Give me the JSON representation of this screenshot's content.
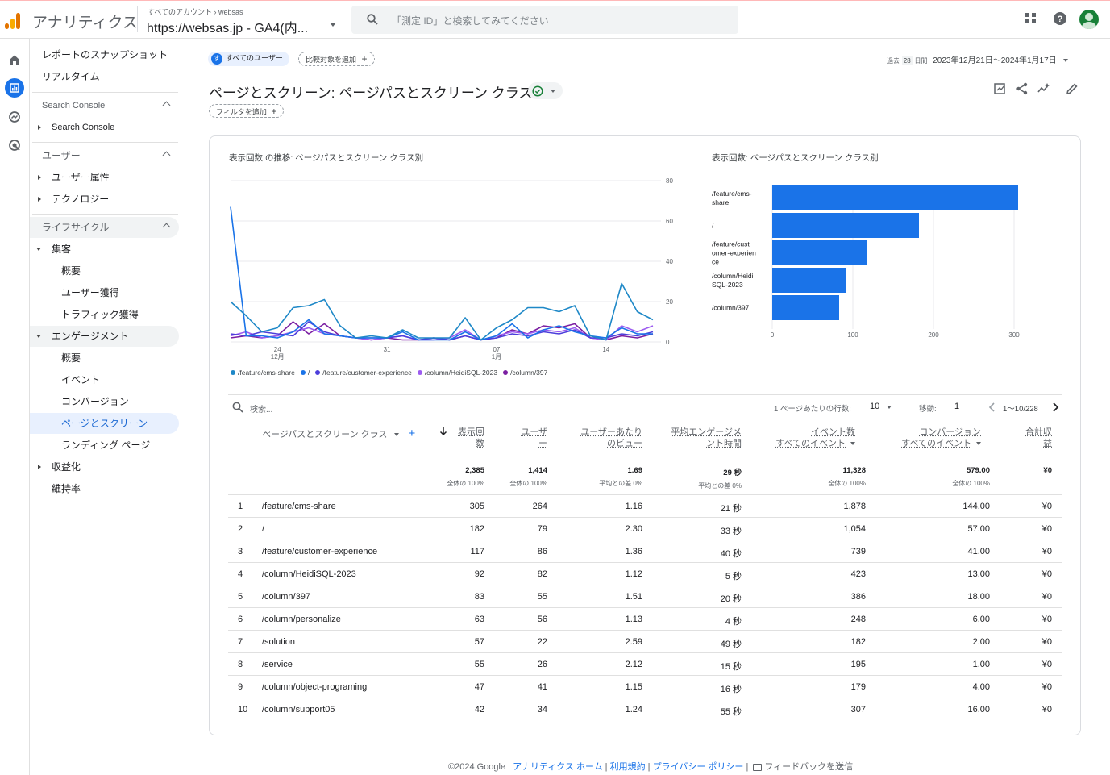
{
  "app": {
    "title": "アナリティクス",
    "account_crumb": [
      "すべてのアカウント",
      "websas"
    ],
    "property_name": "https://websas.jp - GA4(内...",
    "search_placeholder": "「測定 ID」と検索してみてください"
  },
  "sidebar": {
    "top_items": [
      {
        "label": "レポートのスナップショット"
      },
      {
        "label": "リアルタイム"
      }
    ],
    "sections": [
      {
        "title": "Search Console",
        "items": [
          {
            "label": "Search Console"
          }
        ]
      },
      {
        "title": "ユーザー",
        "items": [
          {
            "label": "ユーザー属性"
          },
          {
            "label": "テクノロジー"
          }
        ]
      },
      {
        "title": "ライフサイクル",
        "items": [
          {
            "label": "集客"
          },
          {
            "label": "概要"
          },
          {
            "label": "ユーザー獲得"
          },
          {
            "label": "トラフィック獲得"
          },
          {
            "label": "エンゲージメント"
          },
          {
            "label": "概要"
          },
          {
            "label": "イベント"
          },
          {
            "label": "コンバージョン"
          },
          {
            "label": "ページとスクリーン"
          },
          {
            "label": "ランディング ページ"
          },
          {
            "label": "収益化"
          },
          {
            "label": "維持率"
          }
        ]
      }
    ]
  },
  "header": {
    "segment_badge": "す",
    "segment_label": "すべてのユーザー",
    "compare_label": "比較対象を追加",
    "date_prefix": "過去",
    "date_days": "28",
    "date_suffix": "日間",
    "date_range": "2023年12月21日～2024年1月17日",
    "title": "ページとスクリーン: ページパスとスクリーン クラス",
    "filter_label": "フィルタを追加"
  },
  "line_chart_title": "表示回数 の推移: ページパスとスクリーン クラス別",
  "bar_chart_title": "表示回数: ページパスとスクリーン クラス別",
  "colors": {
    "s1": "#1a73e8",
    "s2": "#12b5cb",
    "s3": "#4c3edb",
    "s4": "#9d5cf0",
    "s5": "#7b1fa2",
    "teal": "#1e88c7"
  },
  "chart_data": [
    {
      "type": "line",
      "title": "表示回数 の推移: ページパスとスクリーン クラス別",
      "x": [
        "12/21",
        "12/22",
        "12/23",
        "12/24",
        "12/25",
        "12/26",
        "12/27",
        "12/28",
        "12/29",
        "12/30",
        "12/31",
        "1/1",
        "1/2",
        "1/3",
        "1/4",
        "1/5",
        "1/6",
        "1/7",
        "1/8",
        "1/9",
        "1/10",
        "1/11",
        "1/12",
        "1/13",
        "1/14",
        "1/15",
        "1/16",
        "1/17"
      ],
      "x_ticks": [
        {
          "label": "24",
          "sub": "12月",
          "at": "12/24"
        },
        {
          "label": "31",
          "sub": "",
          "at": "12/31"
        },
        {
          "label": "07",
          "sub": "1月",
          "at": "1/7"
        },
        {
          "label": "14",
          "sub": "",
          "at": "1/14"
        }
      ],
      "ylim": [
        0,
        80
      ],
      "y_ticks": [
        0,
        20,
        40,
        60,
        80
      ],
      "series": [
        {
          "name": "/feature/cms-share",
          "color": "#1e88c7",
          "values": [
            20,
            13,
            5,
            7,
            17,
            18,
            21,
            8,
            2,
            3,
            2,
            6,
            2,
            2,
            2,
            12,
            1,
            7,
            11,
            17,
            17,
            15,
            18,
            3,
            1,
            29,
            15,
            11
          ]
        },
        {
          "name": "/",
          "color": "#1a73e8",
          "values": [
            67,
            3,
            3,
            2,
            5,
            11,
            4,
            3,
            2,
            2,
            2,
            5,
            1,
            1,
            1,
            5,
            1,
            3,
            9,
            2,
            6,
            8,
            5,
            3,
            2,
            7,
            4,
            4
          ]
        },
        {
          "name": "/feature/customer-experience",
          "color": "#4c3edb",
          "values": [
            4,
            3,
            5,
            4,
            3,
            10,
            5,
            3,
            2,
            2,
            2,
            3,
            1,
            2,
            1,
            3,
            1,
            2,
            4,
            3,
            5,
            4,
            6,
            2,
            2,
            4,
            3,
            5
          ]
        },
        {
          "name": "/column/HeidiSQL-2023",
          "color": "#9d5cf0",
          "values": [
            3,
            5,
            2,
            3,
            5,
            7,
            4,
            3,
            2,
            1,
            2,
            3,
            1,
            1,
            2,
            6,
            1,
            3,
            5,
            4,
            6,
            5,
            7,
            2,
            1,
            8,
            5,
            8
          ]
        },
        {
          "name": "/column/397",
          "color": "#7b1fa2",
          "values": [
            2,
            3,
            2,
            3,
            10,
            4,
            9,
            3,
            2,
            1,
            2,
            1,
            1,
            2,
            1,
            3,
            1,
            2,
            6,
            4,
            8,
            7,
            9,
            2,
            1,
            3,
            2,
            4
          ]
        }
      ]
    },
    {
      "type": "bar",
      "orientation": "horizontal",
      "title": "表示回数: ページパスとスクリーン クラス別",
      "categories": [
        "/feature/cms-share",
        "/",
        "/feature/customer-experience",
        "/column/HeidiSQL-2023",
        "/column/397"
      ],
      "values": [
        305,
        182,
        117,
        92,
        83
      ],
      "xlim": [
        0,
        310
      ],
      "x_ticks": [
        0,
        100,
        200,
        300
      ],
      "color": "#1a73e8"
    }
  ],
  "table": {
    "search_placeholder": "検索...",
    "rows_per_page_label": "1 ページあたりの行数:",
    "rows_per_page": "10",
    "goto_label": "移動:",
    "goto_value": "1",
    "pagination": "1～10/228",
    "headers": {
      "dimension": "ページパスとスクリーン クラス",
      "views": [
        "表示回",
        "数"
      ],
      "users": [
        "ユーザ",
        "ー"
      ],
      "views_per_user": [
        "ユーザーあたり",
        "のビュー"
      ],
      "avg_eng": [
        "平均エンゲージメ",
        "ント時間"
      ],
      "events": [
        "イベント数",
        "すべてのイベント"
      ],
      "conv": [
        "コンバージョン",
        "すべてのイベント"
      ],
      "revenue": [
        "合計収",
        "益"
      ]
    },
    "totals": {
      "views": {
        "value": "2,385",
        "sub": "全体の 100%"
      },
      "users": {
        "value": "1,414",
        "sub": "全体の 100%"
      },
      "views_per_user": {
        "value": "1.69",
        "sub": "平均との差 0%"
      },
      "avg_eng": {
        "value": "29 秒",
        "sub": "平均との差 0%"
      },
      "events": {
        "value": "11,328",
        "sub": "全体の 100%"
      },
      "conv": {
        "value": "579.00",
        "sub": "全体の 100%"
      },
      "revenue": {
        "value": "¥0",
        "sub": ""
      }
    },
    "rows": [
      [
        "1",
        "/feature/cms-share",
        "305",
        "264",
        "1.16",
        "21 秒",
        "1,878",
        "144.00",
        "¥0"
      ],
      [
        "2",
        "/",
        "182",
        "79",
        "2.30",
        "33 秒",
        "1,054",
        "57.00",
        "¥0"
      ],
      [
        "3",
        "/feature/customer-experience",
        "117",
        "86",
        "1.36",
        "40 秒",
        "739",
        "41.00",
        "¥0"
      ],
      [
        "4",
        "/column/HeidiSQL-2023",
        "92",
        "82",
        "1.12",
        "5 秒",
        "423",
        "13.00",
        "¥0"
      ],
      [
        "5",
        "/column/397",
        "83",
        "55",
        "1.51",
        "20 秒",
        "386",
        "18.00",
        "¥0"
      ],
      [
        "6",
        "/column/personalize",
        "63",
        "56",
        "1.13",
        "4 秒",
        "248",
        "6.00",
        "¥0"
      ],
      [
        "7",
        "/solution",
        "57",
        "22",
        "2.59",
        "49 秒",
        "182",
        "2.00",
        "¥0"
      ],
      [
        "8",
        "/service",
        "55",
        "26",
        "2.12",
        "15 秒",
        "195",
        "1.00",
        "¥0"
      ],
      [
        "9",
        "/column/object-programing",
        "47",
        "41",
        "1.15",
        "16 秒",
        "179",
        "4.00",
        "¥0"
      ],
      [
        "10",
        "/column/support05",
        "42",
        "34",
        "1.24",
        "55 秒",
        "307",
        "16.00",
        "¥0"
      ]
    ]
  },
  "footer": {
    "copyright": "©2024 Google",
    "links": [
      "アナリティクス ホーム",
      "利用規約",
      "プライバシー ポリシー"
    ],
    "feedback": "フィードバックを送信"
  }
}
